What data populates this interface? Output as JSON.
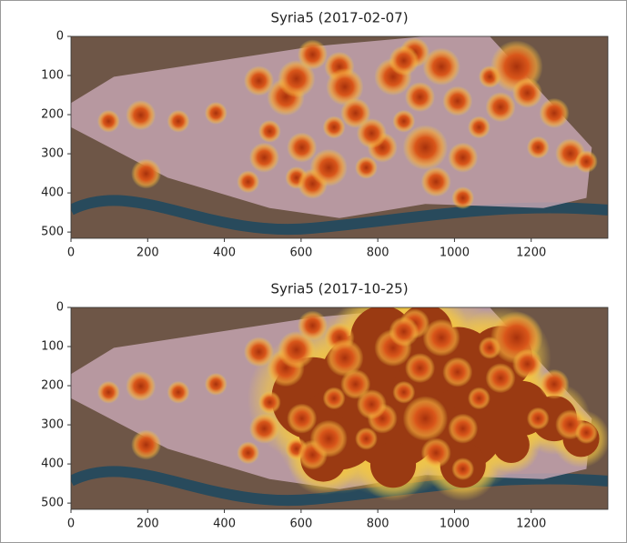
{
  "chart_data": [
    {
      "type": "image",
      "title": "Syria5 (2017-02-07)",
      "xlim": [
        0,
        1400
      ],
      "ylim": [
        516,
        0
      ],
      "xticks": [
        0,
        200,
        400,
        600,
        800,
        1000,
        1200
      ],
      "yticks": [
        0,
        100,
        200,
        300,
        400,
        500
      ]
    },
    {
      "type": "image",
      "title": "Syria5 (2017-10-25)",
      "xlim": [
        0,
        1400
      ],
      "ylim": [
        516,
        0
      ],
      "xticks": [
        0,
        200,
        400,
        600,
        800,
        1000,
        1200
      ],
      "yticks": [
        0,
        100,
        200,
        300,
        400,
        500
      ]
    }
  ]
}
